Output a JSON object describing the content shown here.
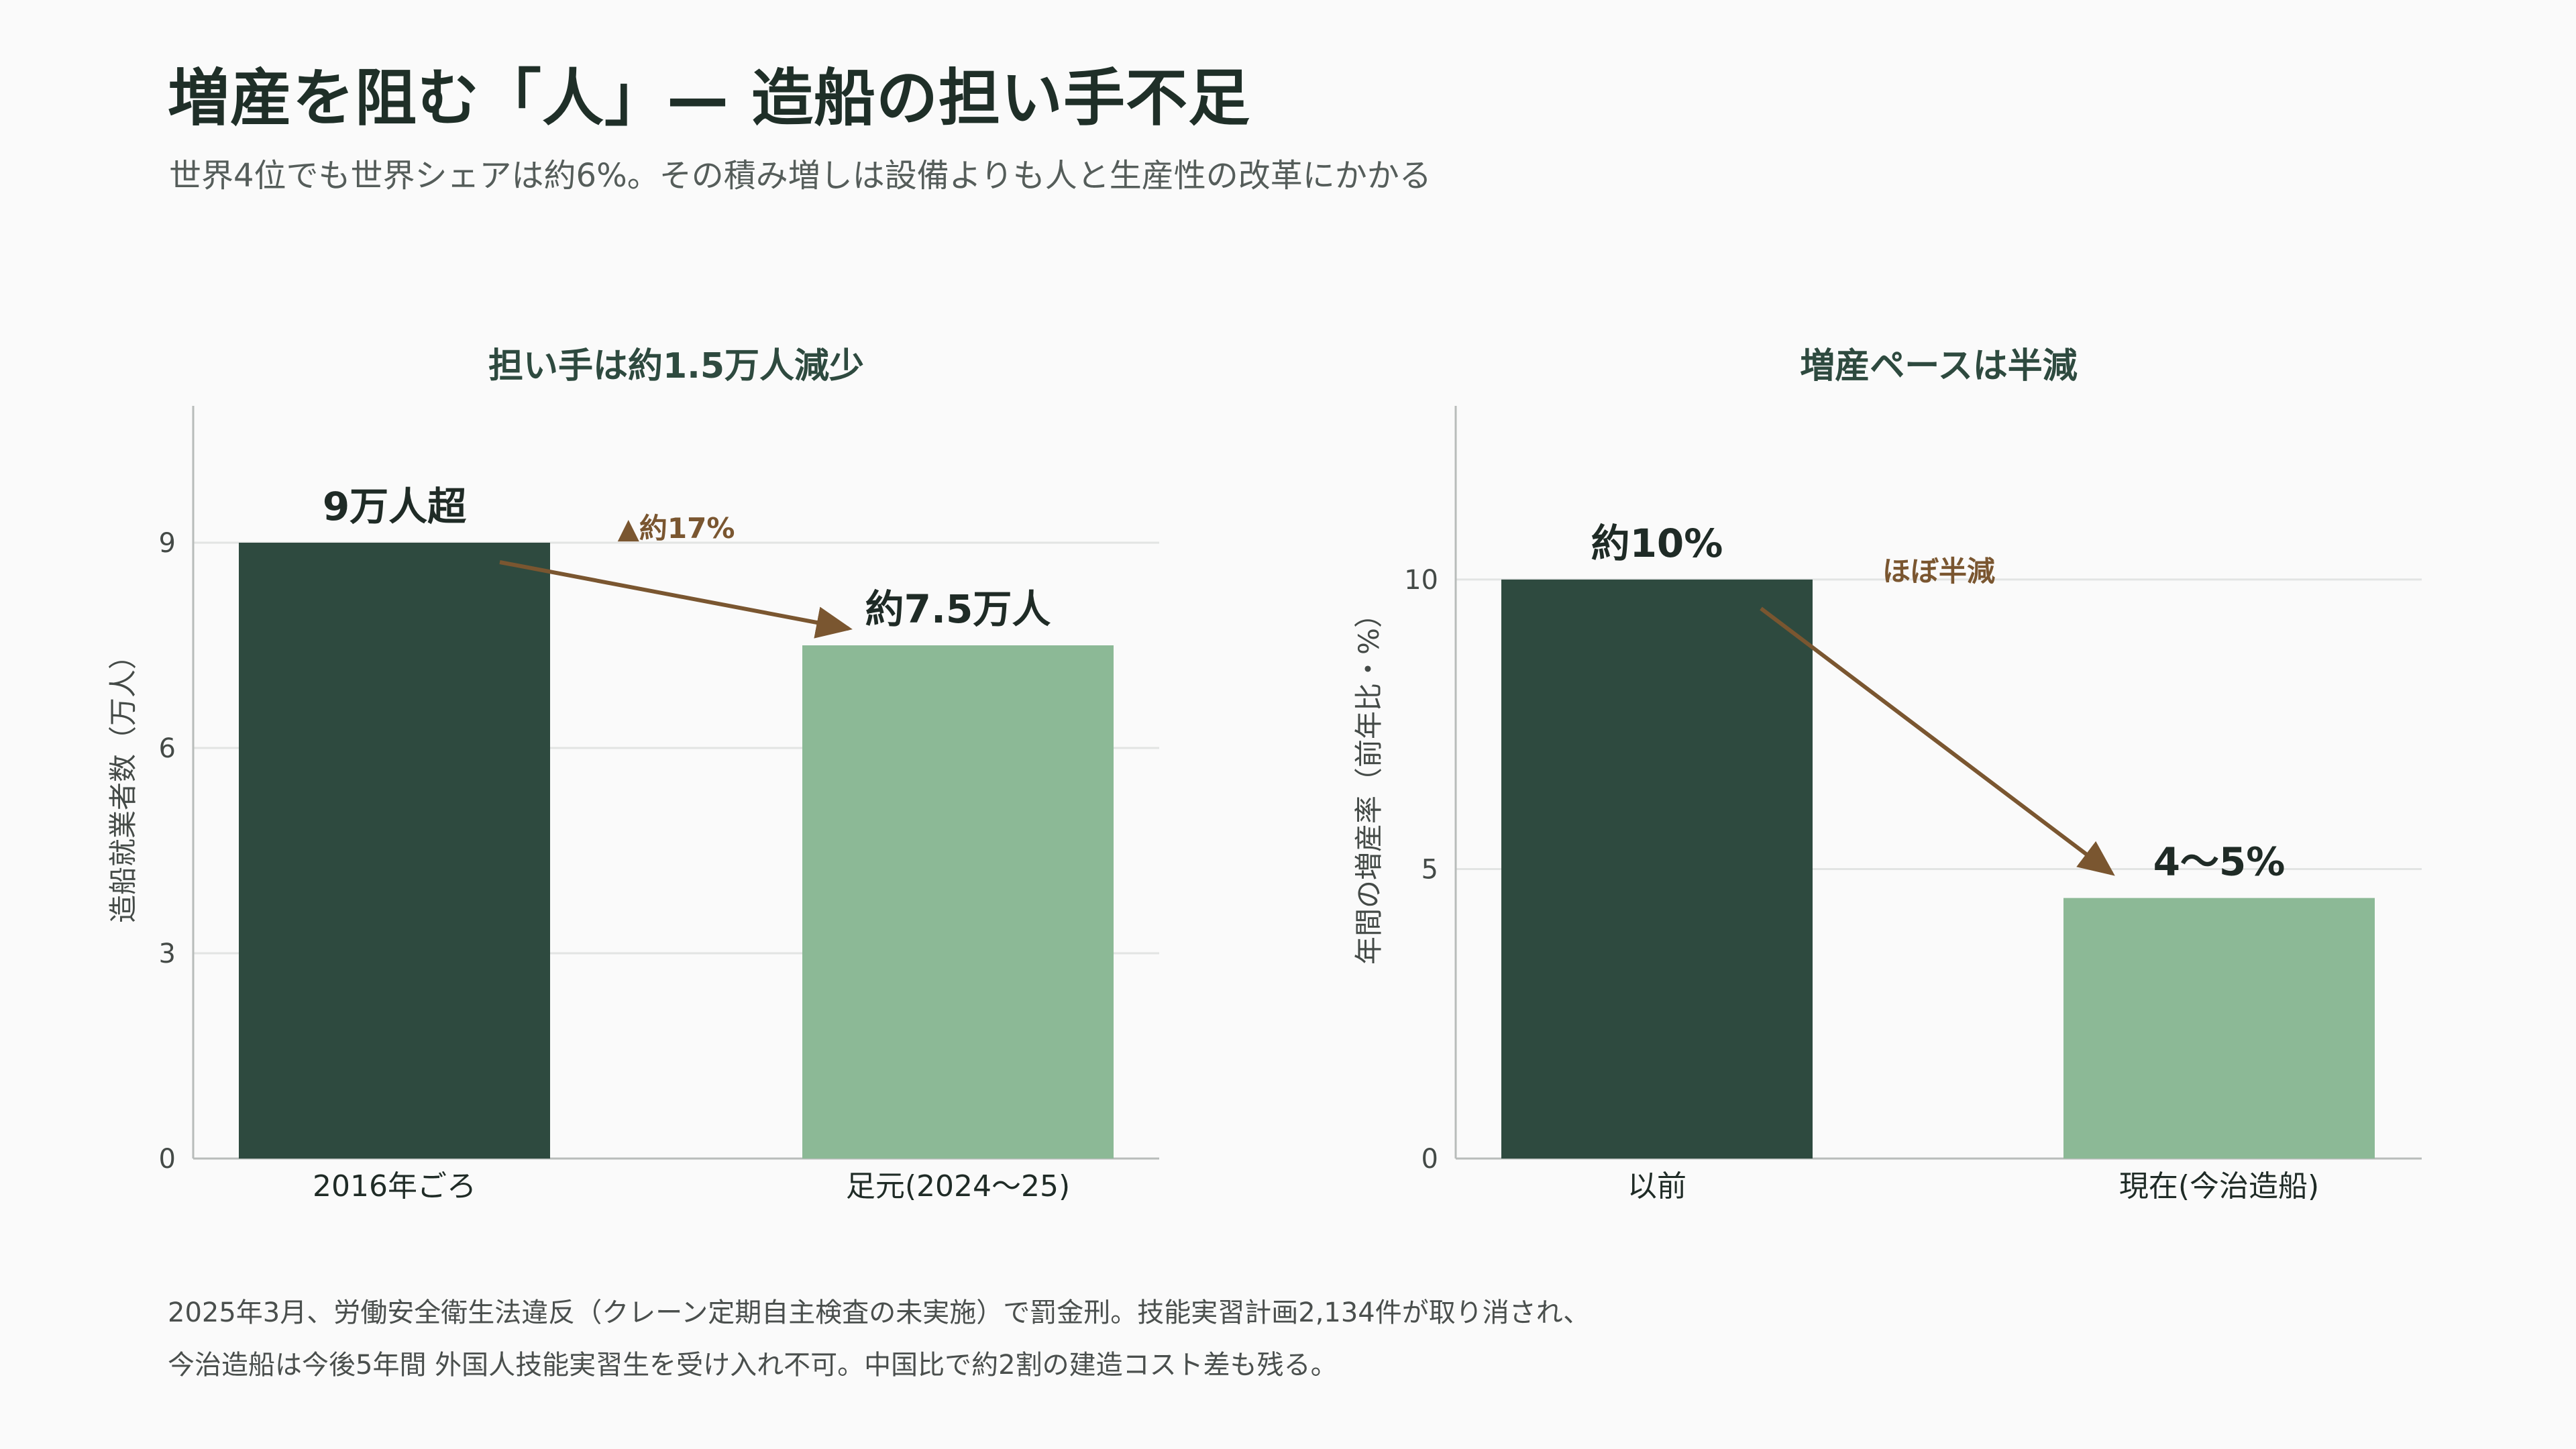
{
  "title": "増産を阻む「人」— 造船の担い手不足",
  "subtitle": "世界4位でも世界シェアは約6%。その積み増しは設備よりも人と生産性の改革にかかる",
  "colors": {
    "dark_bar": "#2e4a3f",
    "light_bar": "#8cb996",
    "arrow": "#7a5630",
    "grid": "#e2e4e3",
    "axis": "#b8bcba",
    "text": "#1f2b26"
  },
  "chart_data": [
    {
      "type": "bar",
      "title": "担い手は約1.5万人減少",
      "ylabel": "造船就業者数（万人）",
      "categories": [
        "2016年ごろ",
        "足元(2024〜25)"
      ],
      "values": [
        9.0,
        7.5
      ],
      "value_labels": [
        "9万人超",
        "約7.5万人"
      ],
      "bar_colors": [
        "#2e4a3f",
        "#8cb996"
      ],
      "yticks": [
        0,
        3,
        6,
        9
      ],
      "ylim": [
        0,
        11
      ],
      "grid": true,
      "annotation": {
        "text": "▲約17%",
        "from": 0,
        "to": 1
      }
    },
    {
      "type": "bar",
      "title": "増産ペースは半減",
      "ylabel": "年間の増産率（前年比・%）",
      "categories": [
        "以前",
        "現在(今治造船)"
      ],
      "values": [
        10,
        4.5
      ],
      "value_labels": [
        "約10%",
        "4〜5%"
      ],
      "bar_colors": [
        "#2e4a3f",
        "#8cb996"
      ],
      "yticks": [
        0,
        5,
        10
      ],
      "ylim": [
        0,
        13
      ],
      "grid": true,
      "annotation": {
        "text": "ほぼ半減",
        "from": 0,
        "to": 1
      }
    }
  ],
  "footnote": {
    "line1": "2025年3月、労働安全衛生法違反（クレーン定期自主検査の未実施）で罰金刑。技能実習計画2,134件が取り消され、",
    "line2": "今治造船は今後5年間 外国人技能実習生を受け入れ不可。中国比で約2割の建造コスト差も残る。"
  }
}
